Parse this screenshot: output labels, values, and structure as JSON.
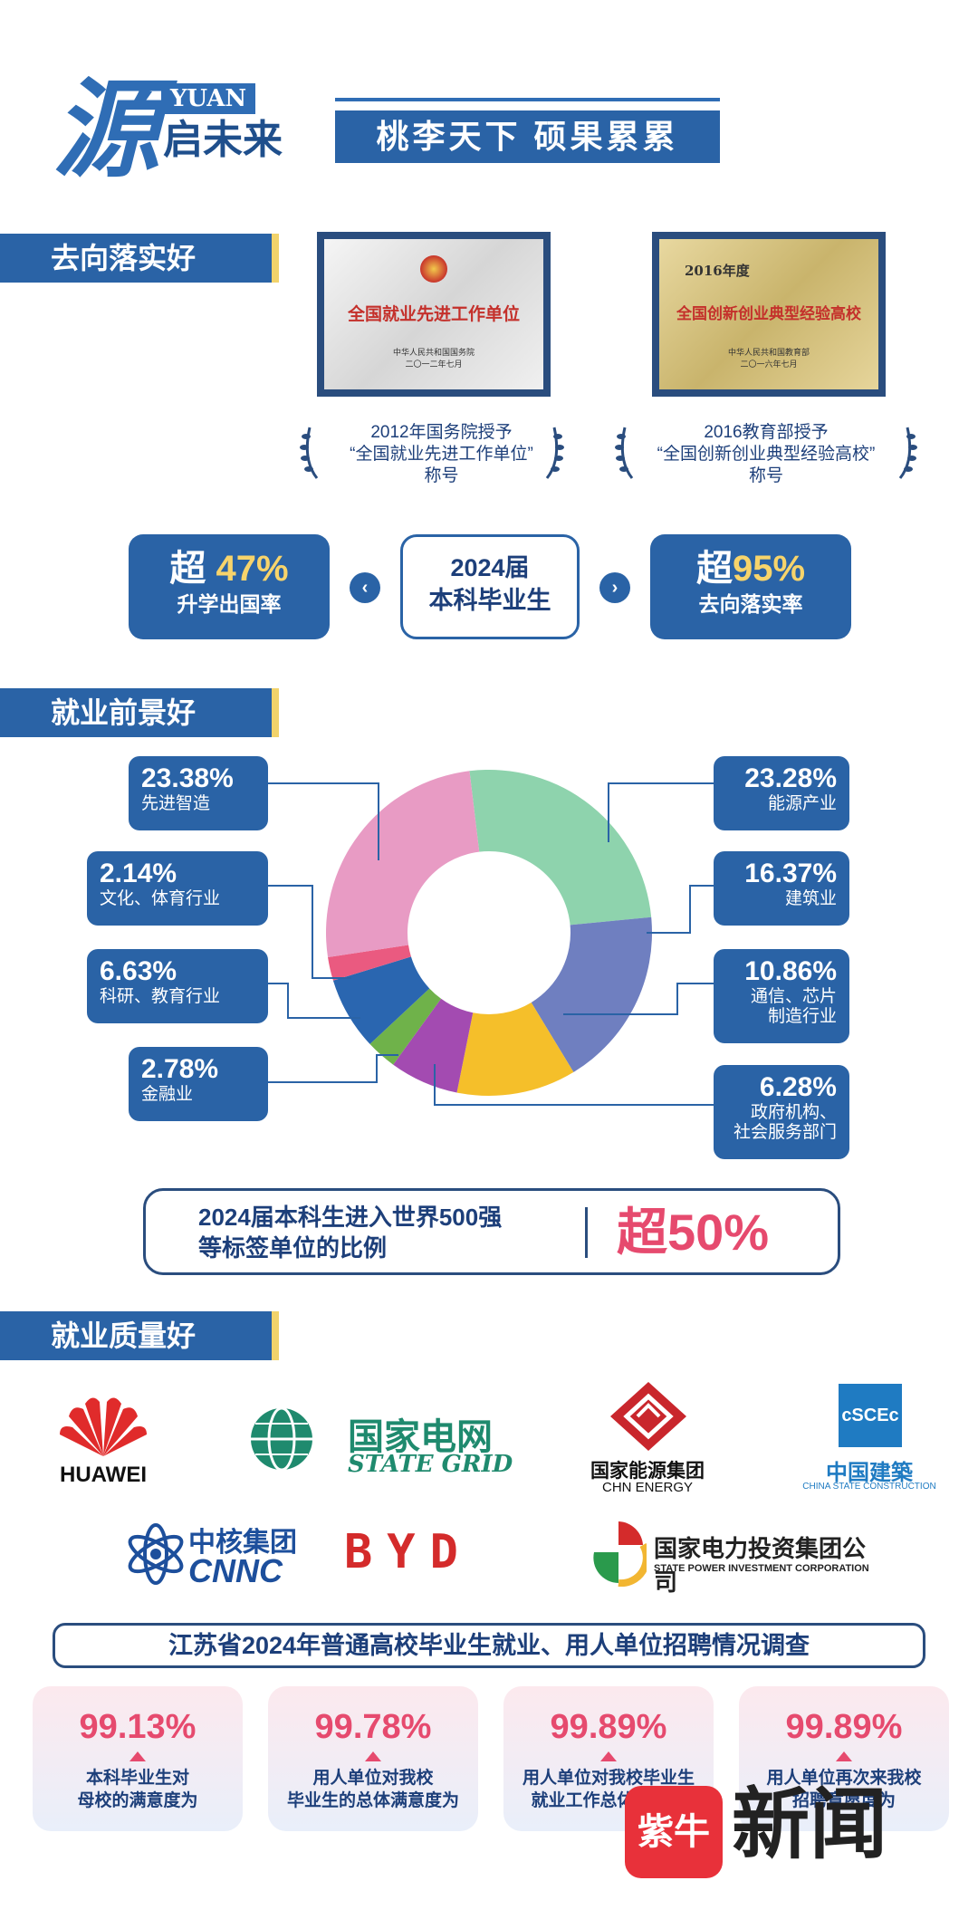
{
  "header": {
    "brand_char": "源",
    "brand_en": "YUAN",
    "brand_sub": "启未来",
    "slogan": "桃李天下 硕果累累"
  },
  "section1": {
    "title": "去向落实好",
    "plaque1": {
      "text": "全国就业先进工作单位",
      "sub": "中华人民共和国国务院\n二〇一二年七月"
    },
    "plaque2": {
      "year": "2016年度",
      "text": "全国创新创业典型经验高校",
      "sub": "中华人民共和国教育部\n二〇一六年七月"
    },
    "award1": [
      "2012年国务院授予",
      "“全国就业先进工作单位”",
      "称号"
    ],
    "award2": [
      "2016教育部授予",
      "“全国创新创业典型经验高校”",
      "称号"
    ],
    "stat_left": {
      "prefix": "超 ",
      "num": "47%",
      "label": "升学出国率"
    },
    "center": [
      "2024届",
      "本科毕业生"
    ],
    "stat_right": {
      "prefix": "超",
      "num": "95%",
      "label": "去向落实率"
    }
  },
  "section2": {
    "title": "就业前景好",
    "labels_left": [
      {
        "pct": "23.38%",
        "name": "先进智造"
      },
      {
        "pct": "2.14%",
        "name": "文化、体育行业"
      },
      {
        "pct": "6.63%",
        "name": "科研、教育行业"
      },
      {
        "pct": "2.78%",
        "name": "金融业"
      }
    ],
    "labels_right": [
      {
        "pct": "23.28%",
        "name": "能源产业"
      },
      {
        "pct": "16.37%",
        "name": "建筑业"
      },
      {
        "pct": "10.86%",
        "name": "通信、芯片\n制造行业"
      },
      {
        "pct": "6.28%",
        "name": "政府机构、\n社会服务部门"
      }
    ],
    "box500_text": "2024届本科生进入世界500强\n等标签单位的比例",
    "box500_value": "超50%",
    "colors": {
      "energy": "#8ed3ad",
      "construction": "#6f7fc0",
      "telecom": "#f5bf2a",
      "government": "#a34bb1",
      "finance": "#6fb24a",
      "research": "#2a66b0",
      "culture": "#ea5a80",
      "manufacturing": "#e89bc4"
    }
  },
  "chart_data": {
    "type": "pie",
    "categories": [
      "能源产业",
      "建筑业",
      "通信、芯片制造行业",
      "政府机构、社会服务部门",
      "金融业",
      "科研、教育行业",
      "文化、体育行业",
      "先进智造"
    ],
    "values": [
      23.28,
      16.37,
      10.86,
      6.28,
      2.78,
      6.63,
      2.14,
      23.38
    ]
  },
  "section3": {
    "title": "就业质量好",
    "logos": {
      "huawei": "HUAWEI",
      "stategrid_cn": "国家电网",
      "stategrid_en": "STATE GRID",
      "chn_cn": "国家能源集团",
      "chn_en": "CHN ENERGY",
      "cscec_cn": "中国建築",
      "cscec_en": "CHINA STATE CONSTRUCTION",
      "cnnc_cn": "中核集团",
      "cnnc_en": "CNNC",
      "byd": "BYD",
      "spic_cn": "国家电力投资集团公司",
      "spic_en": "STATE POWER INVESTMENT CORPORATION"
    },
    "survey_title": "江苏省2024年普通高校毕业生就业、用人单位招聘情况调查",
    "cards": [
      {
        "pct": "99.13%",
        "desc": "本科毕业生对\n母校的满意度为"
      },
      {
        "pct": "99.78%",
        "desc": "用人单位对我校\n毕业生的总体满意度为"
      },
      {
        "pct": "99.89%",
        "desc": "用人单位对我校毕业生\n就业工作总体满意度"
      },
      {
        "pct": "99.89%",
        "desc": "用人单位再次来我校\n招聘意愿度为"
      }
    ]
  },
  "watermark": {
    "badge": "紫牛",
    "text": "新闻"
  }
}
